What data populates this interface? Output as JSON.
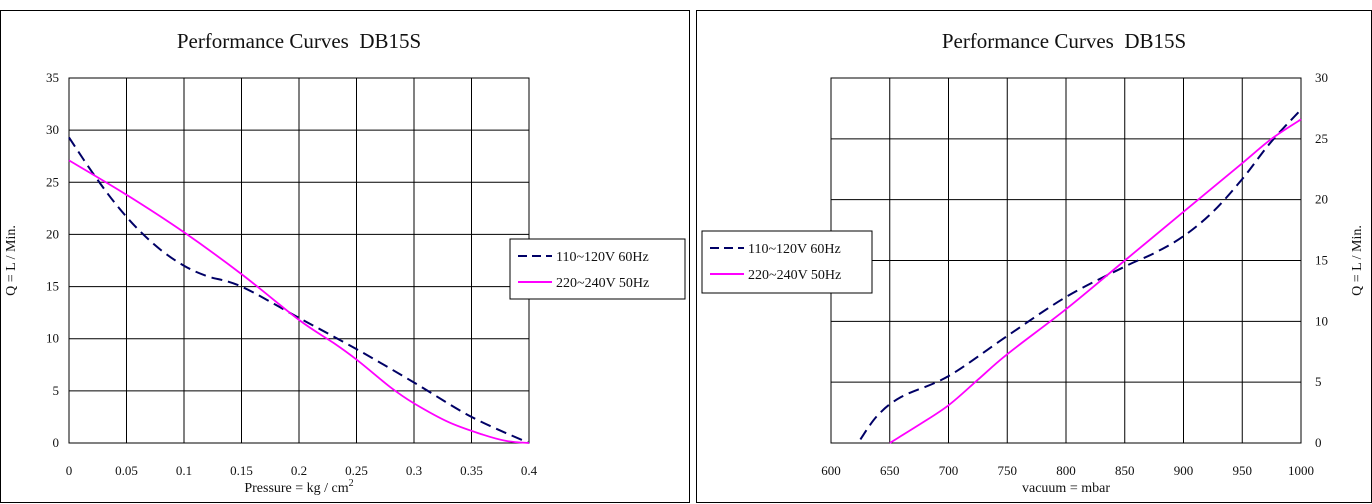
{
  "colors": {
    "series_dashed": "#000066",
    "series_solid": "#ff00ff",
    "grid": "#000000"
  },
  "chart_data": [
    {
      "type": "line",
      "title": "Performance Curves  DB15S",
      "xlabel": "Pressure = kg / cm",
      "xlabel_superscript": "2",
      "ylabel": "Q = L / Min.",
      "xlim": [
        0,
        0.4
      ],
      "ylim": [
        0,
        35
      ],
      "xticks": [
        0,
        0.05,
        0.1,
        0.15,
        0.2,
        0.25,
        0.3,
        0.35,
        0.4
      ],
      "xtick_labels": [
        "0",
        "0.05",
        "0.1",
        "0.15",
        "0.2",
        "0.25",
        "0.3",
        "0.35",
        "0.4"
      ],
      "yticks": [
        0,
        5,
        10,
        15,
        20,
        25,
        30,
        35
      ],
      "ytick_labels": [
        "0",
        "5",
        "10",
        "15",
        "20",
        "25",
        "30",
        "35"
      ],
      "grid": true,
      "legend_position": "right",
      "series": [
        {
          "name": "110~120V 60Hz",
          "style": "dashed",
          "color": "#000066",
          "x": [
            0,
            0.02,
            0.04,
            0.06,
            0.08,
            0.1,
            0.12,
            0.15,
            0.2,
            0.25,
            0.3,
            0.35,
            0.4
          ],
          "y": [
            29.3,
            26.0,
            23.0,
            20.5,
            18.5,
            17.0,
            16.0,
            15.0,
            12.0,
            9.0,
            5.8,
            2.5,
            0
          ]
        },
        {
          "name": "220~240V 50Hz",
          "style": "solid",
          "color": "#ff00ff",
          "x": [
            0,
            0.05,
            0.1,
            0.15,
            0.2,
            0.23,
            0.25,
            0.28,
            0.3,
            0.33,
            0.36,
            0.38,
            0.4
          ],
          "y": [
            27.1,
            23.8,
            20.2,
            16.2,
            11.8,
            9.6,
            8.0,
            5.3,
            3.8,
            2.0,
            0.8,
            0.2,
            0
          ]
        }
      ]
    },
    {
      "type": "line",
      "title": "Performance Curves  DB15S",
      "xlabel": "vacuum = mbar",
      "ylabel": "Q = L / Min.",
      "xlim": [
        600,
        1000
      ],
      "ylim": [
        0,
        30
      ],
      "xticks": [
        600,
        650,
        700,
        750,
        800,
        850,
        900,
        950,
        1000
      ],
      "xtick_labels": [
        "600",
        "650",
        "700",
        "750",
        "800",
        "850",
        "900",
        "950",
        "1000"
      ],
      "yticks": [
        0,
        5,
        10,
        15,
        20,
        25,
        30
      ],
      "ytick_labels": [
        "0",
        "5",
        "10",
        "15",
        "20",
        "25",
        "30"
      ],
      "grid": true,
      "y_axis_side": "right",
      "legend_position": "left",
      "series": [
        {
          "name": "110~120V 60Hz",
          "style": "dashed",
          "color": "#000066",
          "x": [
            625,
            640,
            660,
            700,
            750,
            800,
            850,
            875,
            900,
            925,
            950,
            975,
            1000
          ],
          "y": [
            0.3,
            2.3,
            3.8,
            5.5,
            8.8,
            12.0,
            14.5,
            15.6,
            17.0,
            19.0,
            21.7,
            24.8,
            27.4
          ]
        },
        {
          "name": "220~240V 50Hz",
          "style": "solid",
          "color": "#ff00ff",
          "x": [
            650,
            675,
            700,
            725,
            750,
            800,
            850,
            900,
            950,
            975,
            1000
          ],
          "y": [
            0,
            1.5,
            3.1,
            5.2,
            7.3,
            11.0,
            15.0,
            19.0,
            23.0,
            25.0,
            26.6
          ]
        }
      ]
    }
  ]
}
